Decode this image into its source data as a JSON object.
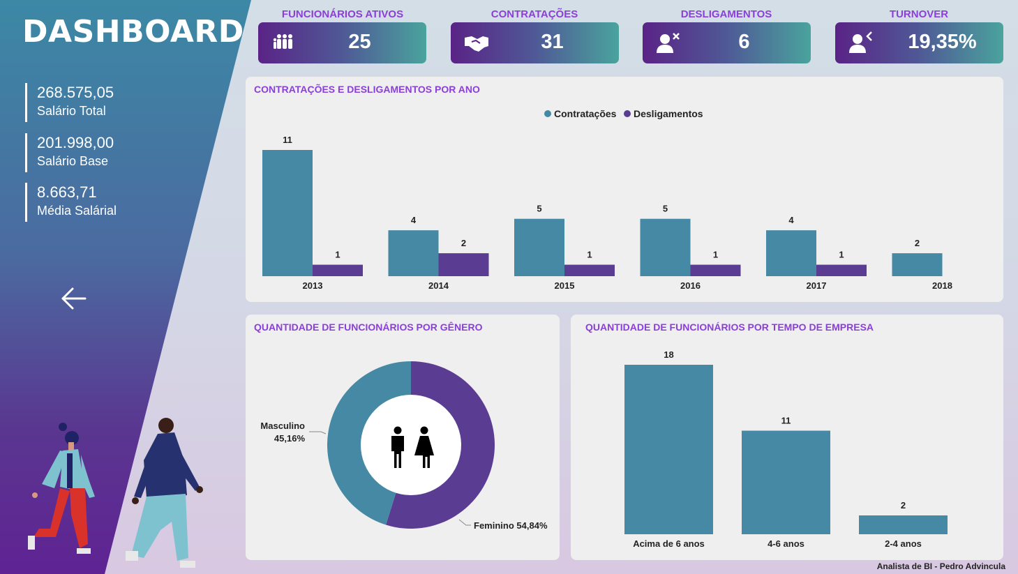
{
  "app": {
    "title": "DASHBOARD",
    "footer": "Analista de BI - Pedro Advincula"
  },
  "colors": {
    "teal": "#4589a5",
    "purple": "#5b3c93",
    "accent": "#8b3fd9"
  },
  "sidebar": {
    "stats": [
      {
        "value": "268.575,05",
        "label": "Salário Total"
      },
      {
        "value": "201.998,00",
        "label": "Salário Base"
      },
      {
        "value": "8.663,71",
        "label": "Média Salárial"
      }
    ],
    "back_icon": "arrow-left-icon"
  },
  "kpis": [
    {
      "label": "FUNCIONÁRIOS ATIVOS",
      "value": "25",
      "icon": "people-group-icon"
    },
    {
      "label": "CONTRATAÇÕES",
      "value": "31",
      "icon": "handshake-icon"
    },
    {
      "label": "DESLIGAMENTOS",
      "value": "6",
      "icon": "user-remove-icon"
    },
    {
      "label": "TURNOVER",
      "value": "19,35%",
      "icon": "user-exit-icon"
    }
  ],
  "chart_data": [
    {
      "type": "bar",
      "title": "CONTRATAÇÕES E DESLIGAMENTOS POR ANO",
      "categories": [
        "2013",
        "2014",
        "2015",
        "2016",
        "2017",
        "2018"
      ],
      "series": [
        {
          "name": "Contratações",
          "values": [
            11,
            4,
            5,
            5,
            4,
            2
          ],
          "color": "#4589a5"
        },
        {
          "name": "Desligamentos",
          "values": [
            1,
            2,
            1,
            1,
            1,
            null
          ],
          "color": "#5b3c93"
        }
      ],
      "legend": "top-center",
      "ylim": [
        0,
        11
      ],
      "grid": false
    },
    {
      "type": "pie",
      "title": "QUANTIDADE DE FUNCIONÁRIOS POR GÊNERO",
      "donut": true,
      "slices": [
        {
          "label": "Feminino",
          "value": 54.84,
          "display": "54,84%",
          "color": "#5b3c93"
        },
        {
          "label": "Masculino",
          "value": 45.16,
          "display": "45,16%",
          "color": "#4589a5"
        }
      ],
      "center_icon": "man-woman-icon"
    },
    {
      "type": "bar",
      "title": "QUANTIDADE DE FUNCIONÁRIOS POR TEMPO DE EMPRESA",
      "categories": [
        "Acima de 6 anos",
        "4-6 anos",
        "2-4 anos"
      ],
      "values": [
        18,
        11,
        2
      ],
      "color": "#4589a5",
      "ylim": [
        0,
        18
      ],
      "grid": false
    }
  ]
}
